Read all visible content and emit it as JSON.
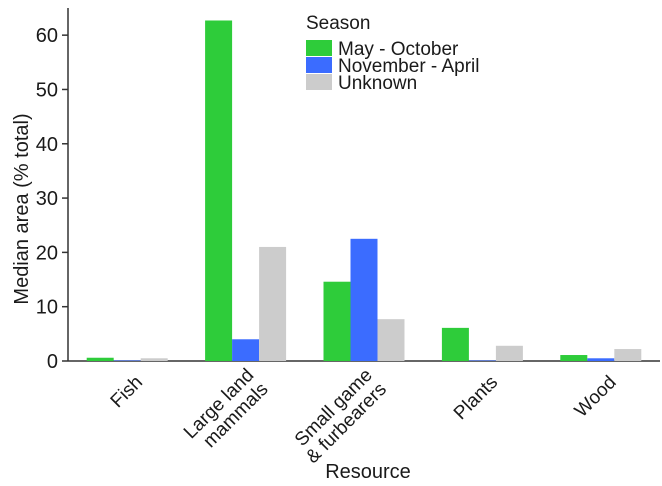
{
  "chart_data": {
    "type": "bar",
    "title": "",
    "xlabel": "Resource",
    "ylabel": "Median area (% total)",
    "ylim": [
      0,
      65
    ],
    "yticks": [
      0,
      10,
      20,
      30,
      40,
      50,
      60
    ],
    "grid": false,
    "legend": {
      "title": "Season",
      "placement": "top-center"
    },
    "categories": [
      "Fish",
      "Large land\nmammals",
      "Small game\n& furbearers",
      "Plants",
      "Wood"
    ],
    "series": [
      {
        "name": "May - October",
        "color": "#2ecc3a",
        "values": [
          0.6,
          62.7,
          14.6,
          6.1,
          1.1
        ]
      },
      {
        "name": "November - April",
        "color": "#3b6cff",
        "values": [
          0.1,
          4.0,
          22.5,
          0.1,
          0.5
        ]
      },
      {
        "name": "Unknown",
        "color": "#cccccc",
        "values": [
          0.5,
          21.0,
          7.7,
          2.8,
          2.2
        ]
      }
    ]
  }
}
